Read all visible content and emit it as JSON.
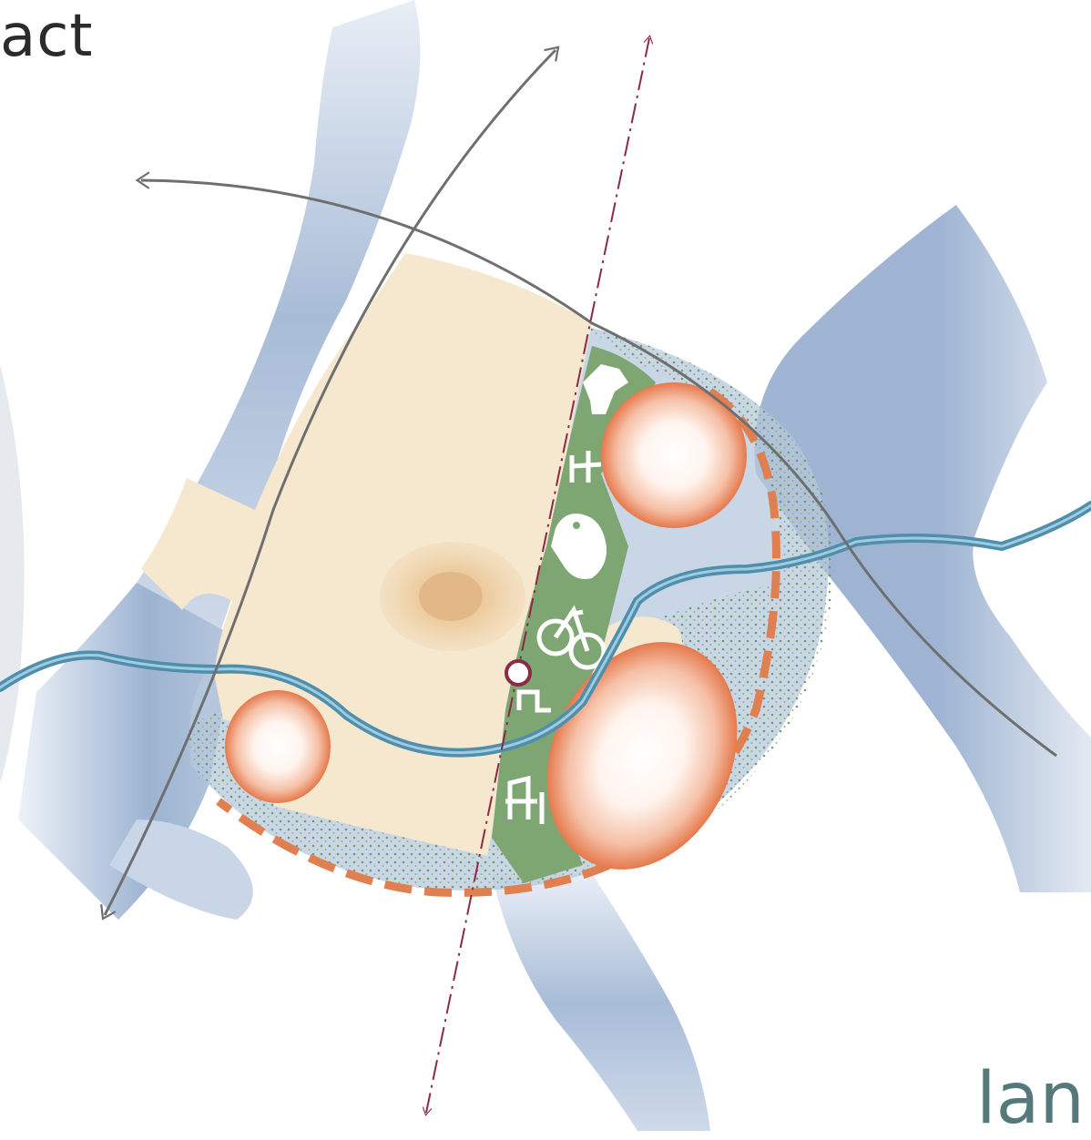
{
  "heading": {
    "text": "act"
  },
  "logo": {
    "text": "lan"
  },
  "icons": [
    "deer-icon",
    "bench-icon",
    "bird-icon",
    "bicycle-icon",
    "building-icon",
    "bench-icon"
  ],
  "colors": {
    "water": "#9fb4d1",
    "river": "#4f8fac",
    "town": "#f5e8cf",
    "green_corridor": "#7da673",
    "dotted_green": "#6f9a5f",
    "boundary_orange": "#e07f4f",
    "rail_line": "#8a2a45",
    "road_line": "#6f6f6f"
  }
}
